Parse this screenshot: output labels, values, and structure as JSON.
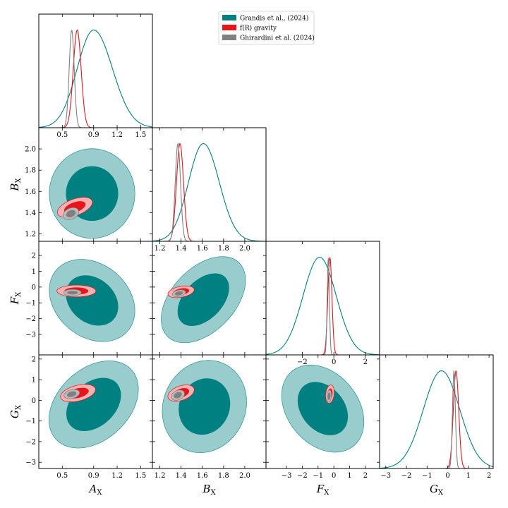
{
  "chart_data": {
    "type": "corner",
    "parameters": [
      {
        "symbol": "A",
        "subscript": "X",
        "range": [
          0.2,
          1.65
        ],
        "ticks": [
          0.5,
          0.9,
          1.2,
          1.5
        ],
        "tick_labels": [
          "0.5",
          "0.9",
          "1.2",
          "1.5"
        ]
      },
      {
        "symbol": "B",
        "subscript": "X",
        "range": [
          1.13,
          2.2
        ],
        "ticks": [
          1.2,
          1.4,
          1.6,
          1.8,
          2.0
        ],
        "tick_labels": [
          "1.2",
          "1.4",
          "1.6",
          "1.8",
          "2.0"
        ]
      },
      {
        "symbol": "F",
        "subscript": "X",
        "range": [
          -4.3,
          2.9
        ],
        "ticks": [
          -3,
          -2,
          -1,
          0,
          1,
          2
        ],
        "tick_labels": [
          "−3",
          "−2",
          "−1",
          "0",
          "1",
          "2"
        ],
        "diag_ticks": [
          -2,
          0,
          2
        ],
        "diag_tick_labels": [
          "−2",
          "0",
          "2"
        ]
      },
      {
        "symbol": "G",
        "subscript": "X",
        "range": [
          -3.3,
          2.2
        ],
        "ticks": [
          -3,
          -2,
          -1,
          0,
          1,
          2
        ],
        "tick_labels": [
          "−3",
          "−2",
          "−1",
          "0",
          "1",
          "2"
        ]
      }
    ],
    "legend": {
      "placement": "top-center",
      "entries": [
        {
          "name": "Grandis et al., (2024)",
          "color": "#008080"
        },
        {
          "name": "f(R) gravity",
          "color": "#e8141a"
        },
        {
          "name": "Ghirardini et al. (2024)",
          "color": "#808080"
        }
      ]
    },
    "series": [
      {
        "name": "Grandis et al., (2024)",
        "color": "#008080",
        "fill_outer": "#99cccc",
        "fill_inner": "#008080",
        "edge": "#2b8f8f",
        "marginals": [
          {
            "mean": 0.9,
            "sigma_left": 0.21,
            "sigma_right": 0.24
          },
          {
            "mean": 1.61,
            "sigma_left": 0.14,
            "sigma_right": 0.15
          },
          {
            "mean": -0.9,
            "sigma": 1.05
          },
          {
            "mean": -0.3,
            "sigma": 0.88
          }
        ],
        "contours": {
          "A-B": {
            "center": [
              0.88,
              1.58
            ],
            "sigma": [
              0.22,
              0.17
            ],
            "rho": 0.0
          },
          "A-F": {
            "center": [
              0.88,
              -0.85
            ],
            "sigma": [
              0.22,
              1.05
            ],
            "rho": -0.25
          },
          "A-G": {
            "center": [
              0.9,
              -0.2
            ],
            "sigma": [
              0.23,
              0.85
            ],
            "rho": 0.35
          },
          "B-F": {
            "center": [
              1.61,
              -0.8
            ],
            "sigma": [
              0.16,
              1.1
            ],
            "rho": 0.45
          },
          "B-G": {
            "center": [
              1.62,
              -0.3
            ],
            "sigma": [
              0.16,
              0.9
            ],
            "rho": 0.1
          },
          "F-G": {
            "center": [
              -0.7,
              -0.4
            ],
            "sigma": [
              1.05,
              0.85
            ],
            "rho": -0.3
          }
        }
      },
      {
        "name": "f(R) gravity",
        "color": "#e8141a",
        "fill_outer": "#f4b2b2",
        "fill_inner": "#e8141a",
        "edge": "#e8141a",
        "marginals": [
          {
            "mean": 0.69,
            "sigma": 0.05
          },
          {
            "mean": 1.39,
            "sigma": 0.033
          },
          {
            "mean": -0.25,
            "sigma": 0.13
          },
          {
            "mean": 0.4,
            "sigma": 0.13
          }
        ],
        "contours": {
          "A-B": {
            "center": [
              0.66,
              1.45
            ],
            "sigma": [
              0.09,
              0.038
            ],
            "rho": 0.5
          },
          "A-F": {
            "center": [
              0.68,
              -0.25
            ],
            "sigma": [
              0.1,
              0.15
            ],
            "rho": 0.0
          },
          "A-G": {
            "center": [
              0.7,
              0.35
            ],
            "sigma": [
              0.09,
              0.17
            ],
            "rho": 0.4
          },
          "B-F": {
            "center": [
              1.4,
              -0.3
            ],
            "sigma": [
              0.05,
              0.15
            ],
            "rho": 0.35
          },
          "B-G": {
            "center": [
              1.4,
              0.35
            ],
            "sigma": [
              0.05,
              0.16
            ],
            "rho": 0.4
          },
          "F-G": {
            "center": [
              -0.25,
              0.3
            ],
            "sigma": [
              0.11,
              0.18
            ],
            "rho": 0.2
          }
        }
      },
      {
        "name": "Ghirardini et al. (2024)",
        "color": "#808080",
        "fill_outer": "#b9b9b9",
        "fill_inner": "#808080",
        "edge": "#808080",
        "marginals": [
          {
            "mean": 0.62,
            "sigma": 0.032
          },
          {
            "mean": 1.37,
            "sigma": 0.025
          },
          {
            "mean": -0.35,
            "sigma": 0.07
          },
          {
            "mean": 0.3,
            "sigma": 0.07
          }
        ],
        "contours": {
          "A-B": {
            "center": [
              0.61,
              1.39
            ],
            "sigma": [
              0.04,
              0.023
            ],
            "rho": 0.3
          },
          "A-F": {
            "center": [
              0.63,
              -0.35
            ],
            "sigma": [
              0.045,
              0.08
            ],
            "rho": 0.0
          },
          "A-G": {
            "center": [
              0.62,
              0.3
            ],
            "sigma": [
              0.04,
              0.09
            ],
            "rho": 0.3
          },
          "B-F": {
            "center": [
              1.38,
              -0.4
            ],
            "sigma": [
              0.025,
              0.09
            ],
            "rho": 0.3
          },
          "B-G": {
            "center": [
              1.37,
              0.25
            ],
            "sigma": [
              0.025,
              0.1
            ],
            "rho": 0.3
          },
          "F-G": {
            "center": [
              -0.3,
              0.2
            ],
            "sigma": [
              0.06,
              0.12
            ],
            "rho": 0.2
          }
        }
      }
    ]
  }
}
